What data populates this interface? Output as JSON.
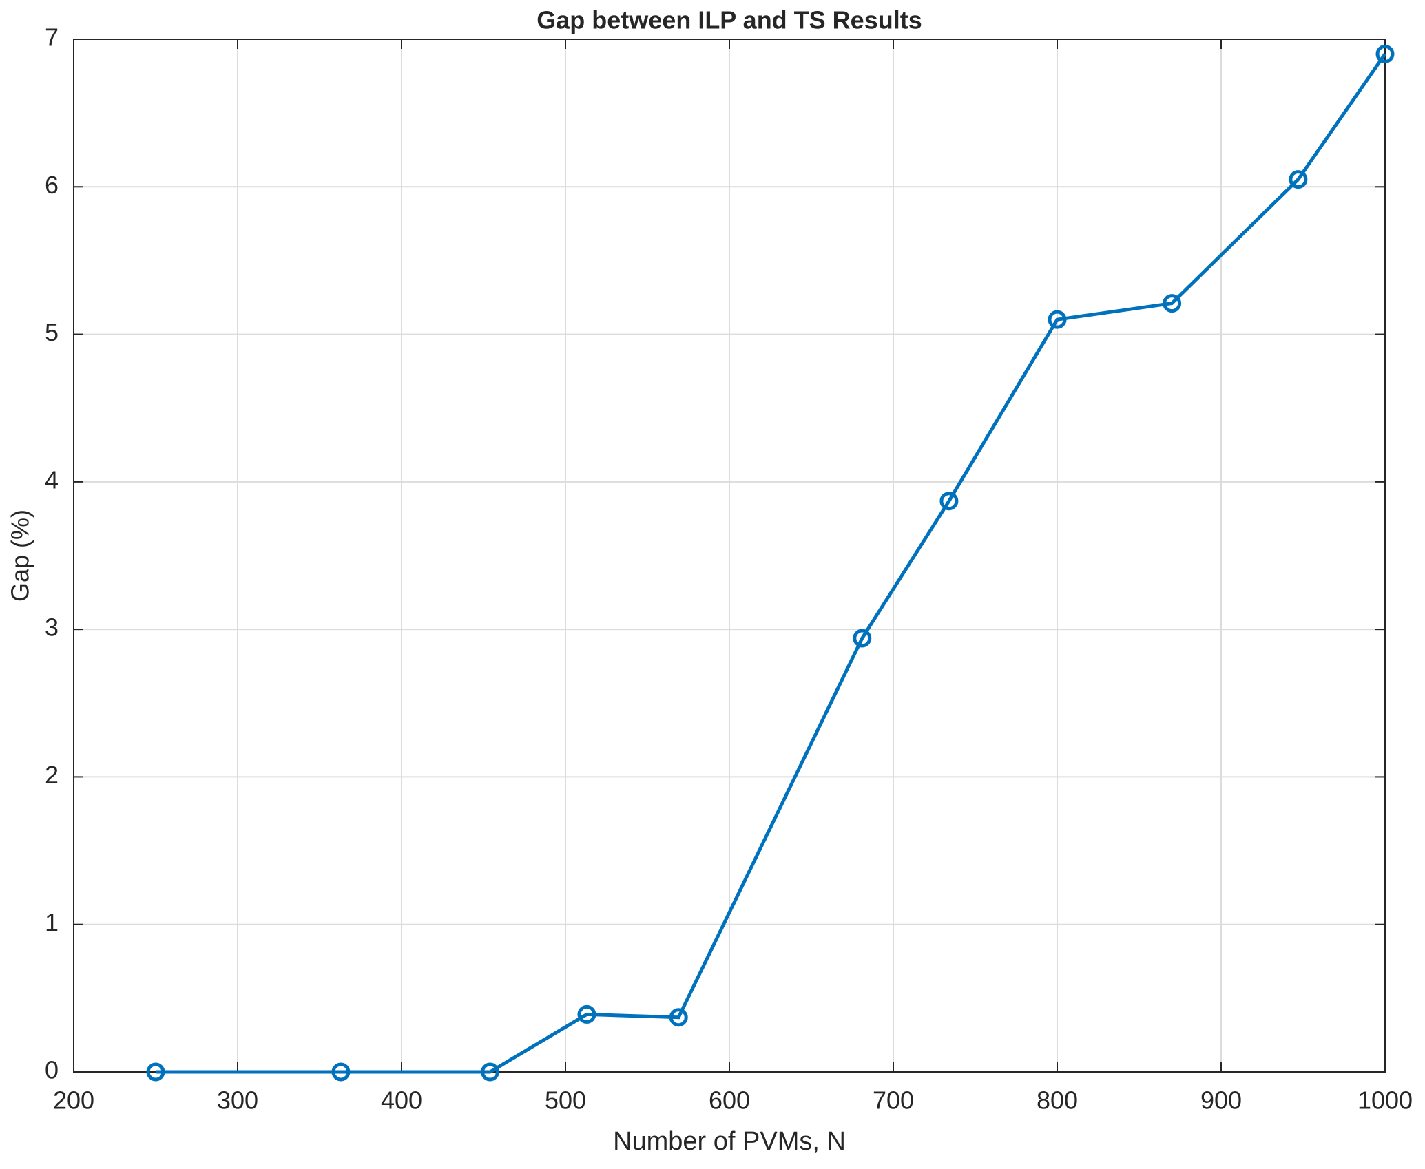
{
  "chart_data": {
    "type": "line",
    "title": "Gap between ILP and TS Results",
    "x_label": "Number of PVMs, N",
    "y_label": "Gap (%)",
    "x": [
      250,
      363,
      454,
      513,
      569,
      681,
      734,
      800,
      870,
      947,
      1000
    ],
    "series": [
      {
        "name": "Gap",
        "color": "#0072bd",
        "values": [
          0,
          0,
          0,
          0.39,
          0.37,
          2.94,
          3.87,
          5.1,
          5.21,
          6.05,
          6.9
        ]
      }
    ],
    "xlim": [
      200,
      1000
    ],
    "xticks": [
      200,
      300,
      400,
      500,
      600,
      700,
      800,
      900,
      1000
    ],
    "ylim": [
      0,
      7
    ],
    "yticks": [
      0,
      1,
      2,
      3,
      4,
      5,
      6,
      7
    ],
    "grid": true
  }
}
